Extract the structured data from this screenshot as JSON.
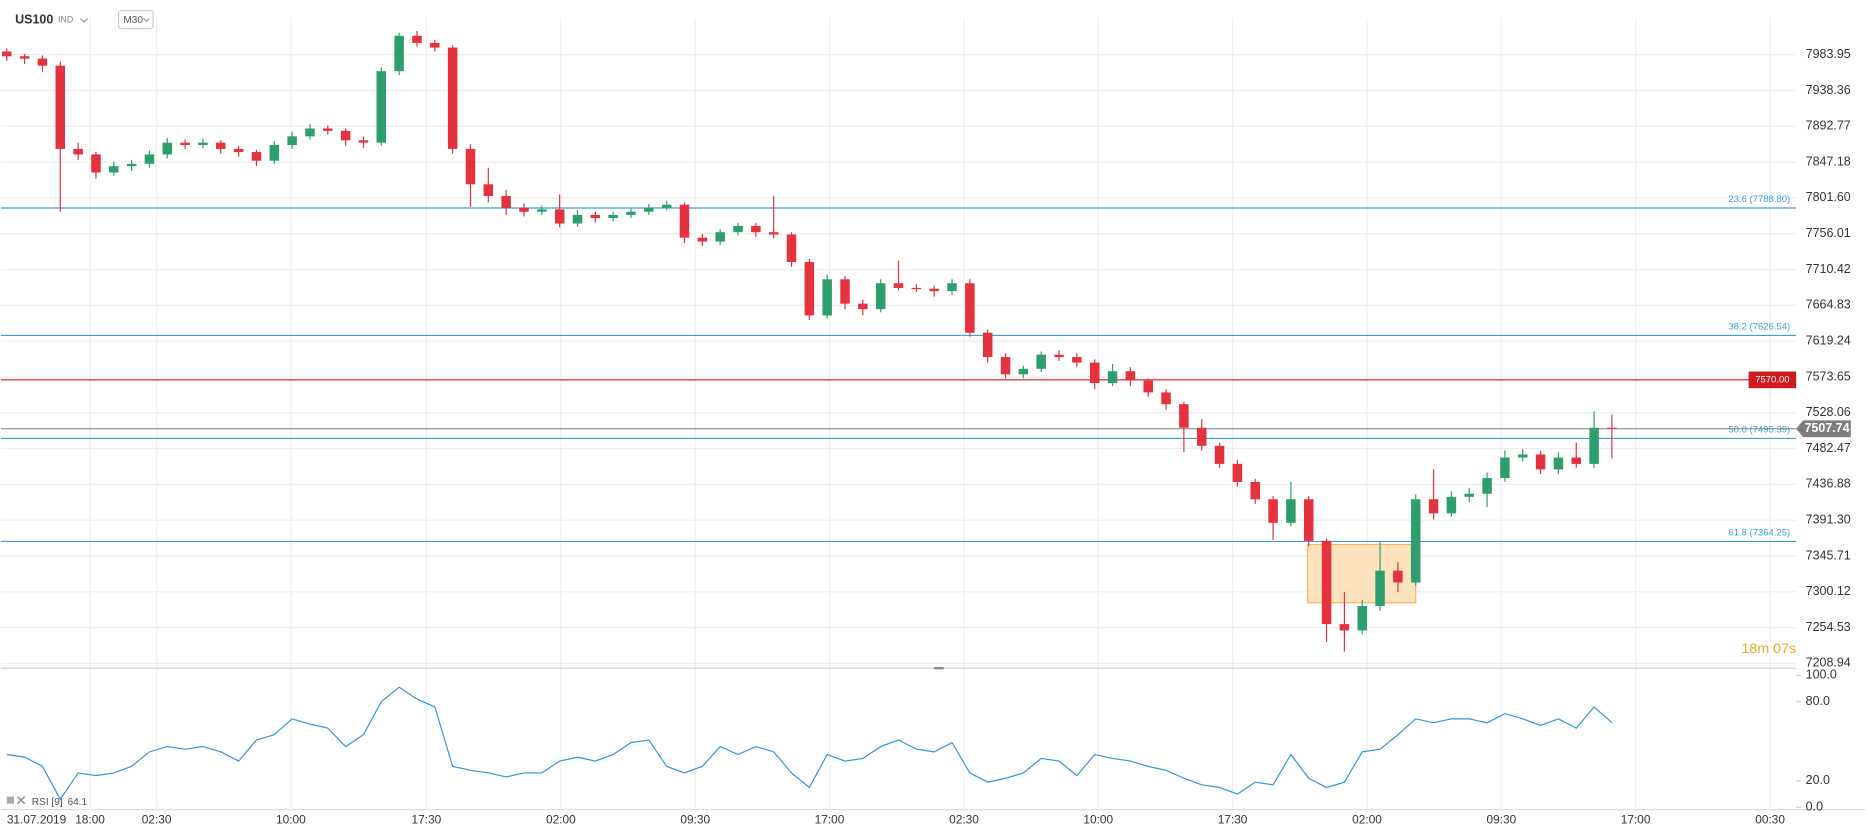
{
  "header": {
    "symbol": "US100",
    "market": "IND",
    "interval": "M30"
  },
  "chart_data": {
    "type": "candlestick",
    "date": "31.07.2019",
    "countdown": "18m 07s",
    "up_color": "#2e9e6e",
    "down_color": "#e5323f",
    "xlim": [
      -0.33,
      100.33
    ],
    "xticks": [
      {
        "value": 4.67,
        "label": "18:00"
      },
      {
        "value": 8.4,
        "label": "02:30"
      },
      {
        "value": 15.93,
        "label": "10:00"
      },
      {
        "value": 23.53,
        "label": "17:30"
      },
      {
        "value": 31.07,
        "label": "02:00"
      },
      {
        "value": 38.6,
        "label": "09:30"
      },
      {
        "value": 46.13,
        "label": "17:00"
      },
      {
        "value": 53.67,
        "label": "02:30"
      },
      {
        "value": 61.2,
        "label": "10:00"
      },
      {
        "value": 68.73,
        "label": "17:30"
      },
      {
        "value": 76.27,
        "label": "02:00"
      },
      {
        "value": 83.8,
        "label": "09:30"
      },
      {
        "value": 91.33,
        "label": "17:00"
      },
      {
        "value": 98.87,
        "label": "00:30"
      }
    ],
    "ylim": [
      7202.9,
      8030.9
    ],
    "yticks": [
      {
        "value": 7983.95,
        "label": "7983.95"
      },
      {
        "value": 7938.36,
        "label": "7938.36"
      },
      {
        "value": 7892.77,
        "label": "7892.77"
      },
      {
        "value": 7847.18,
        "label": "7847.18"
      },
      {
        "value": 7801.6,
        "label": "7801.60"
      },
      {
        "value": 7756.01,
        "label": "7756.01"
      },
      {
        "value": 7710.42,
        "label": "7710.42"
      },
      {
        "value": 7664.83,
        "label": "7664.83"
      },
      {
        "value": 7619.24,
        "label": "7619.24"
      },
      {
        "value": 7573.65,
        "label": "7573.65"
      },
      {
        "value": 7528.06,
        "label": "7528.06"
      },
      {
        "value": 7482.47,
        "label": "7482.47"
      },
      {
        "value": 7436.88,
        "label": "7436.88"
      },
      {
        "value": 7391.3,
        "label": "7391.30"
      },
      {
        "value": 7345.71,
        "label": "7345.71"
      },
      {
        "value": 7300.12,
        "label": "7300.12"
      },
      {
        "value": 7254.53,
        "label": "7254.53"
      },
      {
        "value": 7208.94,
        "label": "7208.94"
      }
    ],
    "grid": true,
    "fib_levels": [
      {
        "value": 7788.8,
        "label": "23.6 (7788.80)"
      },
      {
        "value": 7626.54,
        "label": "38.2 (7626.54)"
      },
      {
        "value": 7495.39,
        "label": "50.0 (7495.39)"
      },
      {
        "value": 7364.25,
        "label": "61.8 (7364.25)"
      }
    ],
    "fib_color": "#3aa0dc",
    "alert_line": {
      "value": 7570,
      "label": "7570.00",
      "color": "#d0191f"
    },
    "current_price": {
      "value": 7507.74,
      "label": "7507.74",
      "color": "#7d7d7d"
    },
    "candles": [
      [
        7988,
        7992,
        7976,
        7982
      ],
      [
        7982,
        7985,
        7972,
        7979
      ],
      [
        7979,
        7983,
        7962,
        7970
      ],
      [
        7970,
        7975,
        7784,
        7864
      ],
      [
        7864,
        7872,
        7850,
        7857
      ],
      [
        7857,
        7860,
        7826,
        7834
      ],
      [
        7834,
        7848,
        7830,
        7842
      ],
      [
        7842,
        7850,
        7836,
        7845
      ],
      [
        7845,
        7862,
        7840,
        7857
      ],
      [
        7857,
        7878,
        7852,
        7872
      ],
      [
        7872,
        7876,
        7864,
        7869
      ],
      [
        7869,
        7877,
        7865,
        7872
      ],
      [
        7872,
        7875,
        7858,
        7864
      ],
      [
        7864,
        7868,
        7854,
        7860
      ],
      [
        7860,
        7863,
        7842,
        7849
      ],
      [
        7849,
        7874,
        7845,
        7869
      ],
      [
        7869,
        7886,
        7864,
        7880
      ],
      [
        7880,
        7896,
        7876,
        7890
      ],
      [
        7890,
        7894,
        7882,
        7887
      ],
      [
        7887,
        7890,
        7868,
        7875
      ],
      [
        7875,
        7880,
        7865,
        7872
      ],
      [
        7872,
        7968,
        7868,
        7963
      ],
      [
        7963,
        8012,
        7958,
        8008
      ],
      [
        8008,
        8014,
        7994,
        7999
      ],
      [
        7999,
        8003,
        7988,
        7993
      ],
      [
        7993,
        7996,
        7858,
        7864
      ],
      [
        7864,
        7870,
        7790,
        7819
      ],
      [
        7819,
        7840,
        7796,
        7804
      ],
      [
        7804,
        7812,
        7780,
        7789
      ],
      [
        7789,
        7795,
        7778,
        7784
      ],
      [
        7784,
        7792,
        7780,
        7787
      ],
      [
        7787,
        7806,
        7764,
        7769
      ],
      [
        7769,
        7786,
        7765,
        7780
      ],
      [
        7780,
        7784,
        7770,
        7776
      ],
      [
        7776,
        7784,
        7772,
        7780
      ],
      [
        7780,
        7788,
        7776,
        7784
      ],
      [
        7784,
        7794,
        7780,
        7789
      ],
      [
        7789,
        7798,
        7786,
        7793
      ],
      [
        7793,
        7796,
        7744,
        7751
      ],
      [
        7751,
        7756,
        7740,
        7746
      ],
      [
        7746,
        7762,
        7742,
        7758
      ],
      [
        7758,
        7770,
        7754,
        7766
      ],
      [
        7766,
        7770,
        7752,
        7758
      ],
      [
        7758,
        7804,
        7750,
        7755
      ],
      [
        7755,
        7758,
        7714,
        7720
      ],
      [
        7720,
        7724,
        7646,
        7652
      ],
      [
        7652,
        7704,
        7648,
        7698
      ],
      [
        7698,
        7702,
        7660,
        7667
      ],
      [
        7667,
        7672,
        7652,
        7660
      ],
      [
        7660,
        7698,
        7656,
        7693
      ],
      [
        7693,
        7722,
        7684,
        7687
      ],
      [
        7687,
        7692,
        7682,
        7686
      ],
      [
        7686,
        7690,
        7676,
        7683
      ],
      [
        7683,
        7698,
        7678,
        7693
      ],
      [
        7693,
        7698,
        7625,
        7630
      ],
      [
        7630,
        7634,
        7592,
        7599
      ],
      [
        7599,
        7604,
        7572,
        7577
      ],
      [
        7577,
        7588,
        7572,
        7584
      ],
      [
        7584,
        7606,
        7580,
        7602
      ],
      [
        7602,
        7608,
        7594,
        7599
      ],
      [
        7599,
        7604,
        7586,
        7592
      ],
      [
        7592,
        7596,
        7558,
        7566
      ],
      [
        7566,
        7590,
        7562,
        7581
      ],
      [
        7581,
        7586,
        7562,
        7569
      ],
      [
        7569,
        7572,
        7548,
        7554
      ],
      [
        7554,
        7558,
        7532,
        7539
      ],
      [
        7539,
        7542,
        7478,
        7509
      ],
      [
        7509,
        7520,
        7480,
        7486
      ],
      [
        7486,
        7490,
        7458,
        7463
      ],
      [
        7463,
        7468,
        7434,
        7440
      ],
      [
        7440,
        7444,
        7412,
        7418
      ],
      [
        7418,
        7422,
        7366,
        7388
      ],
      [
        7388,
        7440,
        7384,
        7418
      ],
      [
        7418,
        7422,
        7358,
        7365
      ],
      [
        7365,
        7368,
        7236,
        7259
      ],
      [
        7259,
        7300,
        7224,
        7251
      ],
      [
        7251,
        7290,
        7246,
        7282
      ],
      [
        7282,
        7364,
        7276,
        7327
      ],
      [
        7327,
        7338,
        7300,
        7312
      ],
      [
        7312,
        7424,
        7308,
        7418
      ],
      [
        7418,
        7456,
        7392,
        7400
      ],
      [
        7400,
        7428,
        7396,
        7421
      ],
      [
        7421,
        7432,
        7414,
        7425
      ],
      [
        7425,
        7452,
        7408,
        7445
      ],
      [
        7445,
        7480,
        7440,
        7471
      ],
      [
        7471,
        7482,
        7466,
        7475
      ],
      [
        7475,
        7480,
        7450,
        7456
      ],
      [
        7456,
        7478,
        7450,
        7471
      ],
      [
        7471,
        7490,
        7458,
        7463
      ],
      [
        7463,
        7530,
        7458,
        7509
      ],
      [
        7509,
        7526,
        7470,
        7507.74
      ]
    ],
    "rsi": {
      "name": "RSI [9]",
      "color": "#2f95e0",
      "ylim": [
        0,
        100
      ],
      "yticks": [
        {
          "value": 100,
          "label": "100.0"
        },
        {
          "value": 80,
          "label": "80.0"
        },
        {
          "value": 20,
          "label": "20.0"
        },
        {
          "value": 0,
          "label": "0.0"
        }
      ],
      "values": [
        40,
        38,
        31,
        6,
        26,
        24,
        26,
        31,
        42,
        46,
        44,
        46,
        42,
        35,
        51,
        55,
        67,
        63,
        60,
        46,
        55,
        80,
        91,
        82,
        76,
        31,
        28,
        26,
        23,
        26,
        26,
        35,
        38,
        35,
        40,
        49,
        51,
        31,
        26,
        31,
        46,
        40,
        46,
        42,
        26,
        15,
        40,
        35,
        37,
        46,
        51,
        44,
        42,
        49,
        26,
        19,
        22,
        26,
        37,
        35,
        24,
        40,
        37,
        35,
        31,
        28,
        22,
        17,
        15,
        10,
        19,
        17,
        40,
        22,
        15,
        19,
        42,
        44,
        55,
        67,
        64,
        67,
        67,
        64,
        71,
        67,
        62,
        67,
        60,
        76,
        64.1
      ]
    }
  }
}
